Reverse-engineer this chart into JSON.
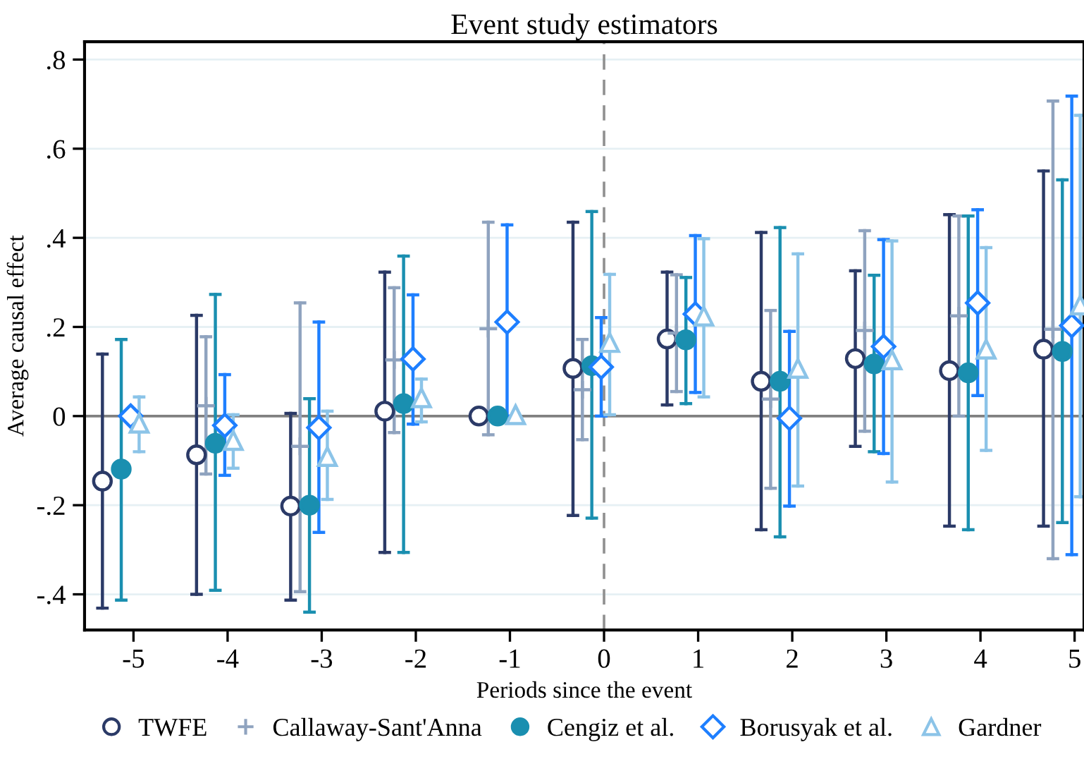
{
  "chart_data": {
    "type": "scatter",
    "title": "Event study estimators",
    "xlabel": "Periods since the event",
    "ylabel": "Average causal effect",
    "series": [
      {
        "name": "TWFE",
        "color": "#2b3a67",
        "marker": "circle",
        "x": [
          -5.33,
          -4.33,
          -3.33,
          -2.33,
          -1.33,
          -0.33,
          0.67,
          1.67,
          2.67,
          3.67,
          4.67
        ],
        "values": [
          -0.146,
          -0.087,
          -0.202,
          0.011,
          0,
          0.107,
          0.173,
          0.078,
          0.129,
          0.102,
          0.15
        ],
        "errors": [
          [
            -0.431,
            0.139
          ],
          [
            -0.4,
            0.226
          ],
          [
            -0.413,
            0.006
          ],
          [
            -0.306,
            0.323
          ],
          null,
          [
            -0.223,
            0.435
          ],
          [
            0.025,
            0.323
          ],
          [
            -0.255,
            0.412
          ],
          [
            -0.068,
            0.326
          ],
          [
            -0.247,
            0.452
          ],
          [
            -0.247,
            0.55
          ]
        ]
      },
      {
        "name": "Callaway-Sant'Anna",
        "color": "#8fa3bf",
        "marker": "cross",
        "x": [
          null,
          -4.23,
          -3.23,
          -2.23,
          -1.23,
          -0.23,
          0.77,
          1.77,
          2.77,
          3.77,
          4.77
        ],
        "values": [
          null,
          0.023,
          -0.068,
          0.126,
          0.196,
          0.059,
          0.186,
          0.038,
          0.192,
          0.225,
          0.195
        ],
        "errors": [
          null,
          [
            -0.13,
            0.178
          ],
          [
            -0.394,
            0.254
          ],
          [
            -0.037,
            0.288
          ],
          [
            -0.042,
            0.435
          ],
          [
            -0.053,
            0.172
          ],
          [
            0.055,
            0.317
          ],
          [
            -0.162,
            0.237
          ],
          [
            -0.034,
            0.416
          ],
          [
            0,
            0.449
          ],
          [
            -0.32,
            0.707
          ]
        ]
      },
      {
        "name": "Cengiz et al.",
        "color": "#1a8fb0",
        "marker": "circle",
        "x": [
          -5.13,
          -4.13,
          -3.13,
          -2.13,
          -1.13,
          -0.13,
          0.87,
          1.87,
          2.87,
          3.87,
          4.87
        ],
        "values": [
          -0.119,
          -0.061,
          -0.2,
          0.028,
          0,
          0.113,
          0.171,
          0.078,
          0.117,
          0.097,
          0.145
        ],
        "errors": [
          [
            -0.413,
            0.172
          ],
          [
            -0.391,
            0.273
          ],
          [
            -0.44,
            0.039
          ],
          [
            -0.306,
            0.359
          ],
          null,
          [
            -0.229,
            0.459
          ],
          [
            0.028,
            0.311
          ],
          [
            -0.271,
            0.423
          ],
          [
            -0.08,
            0.316
          ],
          [
            -0.255,
            0.449
          ],
          [
            -0.239,
            0.53
          ]
        ]
      },
      {
        "name": "Borusyak et al.",
        "color": "#1e7fff",
        "marker": "diamond",
        "x": [
          -5.03,
          -4.03,
          -3.03,
          -2.03,
          -1.03,
          -0.03,
          0.97,
          1.97,
          2.97,
          3.97,
          4.97
        ],
        "values": [
          0,
          -0.021,
          -0.026,
          0.128,
          0.211,
          0.11,
          0.229,
          -0.005,
          0.156,
          0.254,
          0.203
        ],
        "errors": [
          null,
          [
            -0.133,
            0.093
          ],
          [
            -0.261,
            0.211
          ],
          [
            -0.018,
            0.272
          ],
          [
            0,
            0.429
          ],
          [
            0,
            0.221
          ],
          [
            0.053,
            0.405
          ],
          [
            -0.202,
            0.19
          ],
          [
            -0.084,
            0.396
          ],
          [
            0.046,
            0.463
          ],
          [
            -0.311,
            0.718
          ]
        ]
      },
      {
        "name": "Gardner",
        "color": "#8cc4e8",
        "marker": "triangle",
        "x": [
          -4.94,
          -3.94,
          -2.94,
          -1.94,
          -0.94,
          0.06,
          1.06,
          2.06,
          3.06,
          4.06,
          5.06
        ],
        "values": [
          -0.016,
          -0.055,
          -0.091,
          0.041,
          0.003,
          0.165,
          0.224,
          0.107,
          0.126,
          0.15,
          0.249
        ],
        "errors": [
          [
            -0.08,
            0.043
          ],
          [
            -0.117,
            0.003
          ],
          [
            -0.187,
            0.011
          ],
          [
            -0.013,
            0.083
          ],
          null,
          [
            0.003,
            0.318
          ],
          [
            0.043,
            0.398
          ],
          [
            -0.157,
            0.364
          ],
          [
            -0.148,
            0.393
          ],
          [
            -0.077,
            0.378
          ],
          [
            -0.181,
            0.675
          ]
        ]
      }
    ],
    "xlim": [
      -5.52,
      5.1
    ],
    "xticks": [
      -5,
      -4,
      -3,
      -2,
      -1,
      0,
      1,
      2,
      3,
      4,
      5
    ],
    "ylim": [
      -0.48,
      0.84
    ],
    "yticks": [
      {
        "value": -0.4,
        "label": "-.4"
      },
      {
        "value": -0.2,
        "label": "-.2"
      },
      0,
      {
        "value": 0.2,
        "label": ".2"
      },
      {
        "value": 0.4,
        "label": ".4"
      },
      {
        "value": 0.6,
        "label": ".6"
      },
      {
        "value": 0.8,
        "label": ".8"
      }
    ],
    "ref_lines": [
      {
        "axis": "y",
        "value": 0,
        "color": "#808080",
        "line_style": "solid"
      },
      {
        "axis": "x",
        "value": 0,
        "color": "#909090",
        "line_style": "dashed"
      }
    ],
    "grid": "y",
    "legend": "bottom"
  }
}
